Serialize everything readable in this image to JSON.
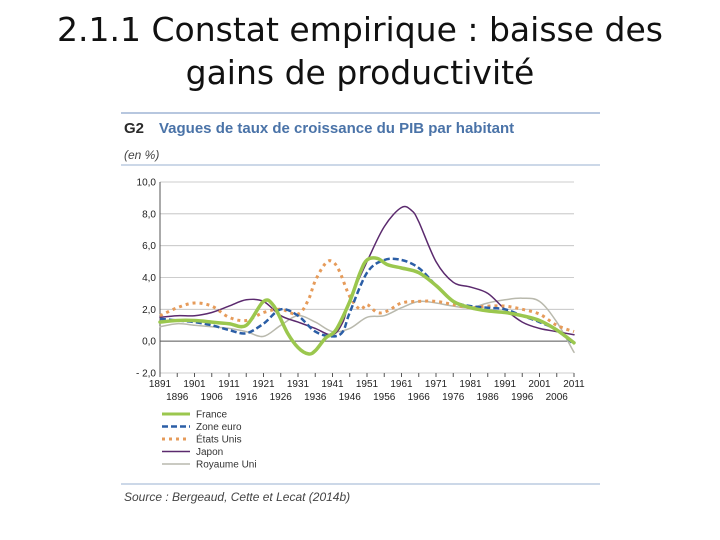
{
  "slide": {
    "title_line1": "2.1.1 Constat empirique : baisse des",
    "title_line2": "gains de productivité"
  },
  "figure": {
    "code": "G2",
    "title": "Vagues de taux de croissance du PIB par habitant",
    "unit": "(en %)",
    "source": "Source : Bergeaud, Cette et Lecat (2014b)"
  },
  "chart_data": {
    "type": "line",
    "ylim": [
      -2,
      10
    ],
    "yticks": [
      "10,0",
      "8,0",
      "6,0",
      "4,0",
      "2,0",
      "0,0",
      "- 2,0"
    ],
    "xlim": [
      1891,
      2011
    ],
    "xticks_top": [
      "1891",
      "1901",
      "1911",
      "1921",
      "1931",
      "1941",
      "1951",
      "1961",
      "1971",
      "1981",
      "1991",
      "2001",
      "2011"
    ],
    "xticks_bottom": [
      "1896",
      "1906",
      "1916",
      "1926",
      "1936",
      "1946",
      "1956",
      "1966",
      "1976",
      "1986",
      "1996",
      "2006"
    ],
    "grid": "horizontal",
    "legend_position": "bottom-left",
    "series": [
      {
        "name": "France",
        "color": "#9bc74e",
        "style": "solid",
        "points": [
          [
            1891,
            1.2
          ],
          [
            1896,
            1.3
          ],
          [
            1901,
            1.3
          ],
          [
            1906,
            1.2
          ],
          [
            1911,
            1.1
          ],
          [
            1916,
            1.0
          ],
          [
            1921,
            2.5
          ],
          [
            1924,
            2.2
          ],
          [
            1928,
            0.5
          ],
          [
            1931,
            -0.4
          ],
          [
            1934,
            -0.8
          ],
          [
            1936,
            -0.6
          ],
          [
            1939,
            0.2
          ],
          [
            1942,
            0.7
          ],
          [
            1946,
            2.5
          ],
          [
            1949,
            4.3
          ],
          [
            1951,
            5.1
          ],
          [
            1954,
            5.2
          ],
          [
            1957,
            4.8
          ],
          [
            1961,
            4.6
          ],
          [
            1966,
            4.3
          ],
          [
            1971,
            3.5
          ],
          [
            1976,
            2.5
          ],
          [
            1981,
            2.1
          ],
          [
            1986,
            1.9
          ],
          [
            1991,
            1.8
          ],
          [
            1996,
            1.6
          ],
          [
            2001,
            1.3
          ],
          [
            2006,
            0.7
          ],
          [
            2011,
            -0.1
          ]
        ]
      },
      {
        "name": "Zone euro",
        "color": "#2b5ea6",
        "style": "dashed",
        "points": [
          [
            1891,
            1.4
          ],
          [
            1896,
            1.3
          ],
          [
            1901,
            1.2
          ],
          [
            1906,
            1.0
          ],
          [
            1911,
            0.7
          ],
          [
            1916,
            0.5
          ],
          [
            1921,
            1.1
          ],
          [
            1926,
            2.0
          ],
          [
            1931,
            1.6
          ],
          [
            1936,
            0.6
          ],
          [
            1941,
            0.3
          ],
          [
            1944,
            0.6
          ],
          [
            1946,
            1.8
          ],
          [
            1951,
            4.3
          ],
          [
            1956,
            5.1
          ],
          [
            1961,
            5.1
          ],
          [
            1966,
            4.6
          ],
          [
            1971,
            3.5
          ],
          [
            1976,
            2.5
          ],
          [
            1981,
            2.2
          ],
          [
            1986,
            2.1
          ],
          [
            1991,
            2.0
          ],
          [
            1996,
            1.6
          ],
          [
            2001,
            1.2
          ],
          [
            2006,
            0.7
          ],
          [
            2011,
            -0.2
          ]
        ]
      },
      {
        "name": "États Unis",
        "color": "#e69b5a",
        "style": "dotted",
        "points": [
          [
            1891,
            1.6
          ],
          [
            1896,
            2.1
          ],
          [
            1901,
            2.4
          ],
          [
            1906,
            2.2
          ],
          [
            1911,
            1.5
          ],
          [
            1916,
            1.3
          ],
          [
            1921,
            1.8
          ],
          [
            1926,
            2.0
          ],
          [
            1931,
            1.7
          ],
          [
            1934,
            2.6
          ],
          [
            1936,
            3.8
          ],
          [
            1939,
            4.9
          ],
          [
            1941,
            5.0
          ],
          [
            1943,
            4.4
          ],
          [
            1946,
            2.8
          ],
          [
            1949,
            2.0
          ],
          [
            1951,
            2.3
          ],
          [
            1954,
            1.8
          ],
          [
            1957,
            1.9
          ],
          [
            1961,
            2.4
          ],
          [
            1966,
            2.5
          ],
          [
            1971,
            2.5
          ],
          [
            1976,
            2.3
          ],
          [
            1981,
            2.1
          ],
          [
            1986,
            2.2
          ],
          [
            1991,
            2.2
          ],
          [
            1996,
            2.0
          ],
          [
            2001,
            1.7
          ],
          [
            2006,
            1.0
          ],
          [
            2011,
            0.6
          ]
        ]
      },
      {
        "name": "Japon",
        "color": "#5b2a6e",
        "style": "solid",
        "points": [
          [
            1891,
            1.5
          ],
          [
            1896,
            1.6
          ],
          [
            1901,
            1.6
          ],
          [
            1906,
            1.8
          ],
          [
            1911,
            2.2
          ],
          [
            1916,
            2.6
          ],
          [
            1921,
            2.5
          ],
          [
            1926,
            1.6
          ],
          [
            1931,
            1.2
          ],
          [
            1936,
            0.8
          ],
          [
            1941,
            0.4
          ],
          [
            1944,
            1.2
          ],
          [
            1946,
            2.6
          ],
          [
            1951,
            5.0
          ],
          [
            1956,
            7.2
          ],
          [
            1961,
            8.4
          ],
          [
            1964,
            8.2
          ],
          [
            1966,
            7.5
          ],
          [
            1971,
            5.0
          ],
          [
            1976,
            3.7
          ],
          [
            1981,
            3.4
          ],
          [
            1986,
            3.0
          ],
          [
            1991,
            2.0
          ],
          [
            1996,
            1.2
          ],
          [
            2001,
            0.8
          ],
          [
            2006,
            0.6
          ],
          [
            2011,
            0.4
          ]
        ]
      },
      {
        "name": "Royaume Uni",
        "color": "#b9b9ad",
        "style": "solid",
        "points": [
          [
            1891,
            0.9
          ],
          [
            1896,
            1.1
          ],
          [
            1901,
            1.0
          ],
          [
            1906,
            0.9
          ],
          [
            1911,
            0.8
          ],
          [
            1916,
            0.6
          ],
          [
            1921,
            0.3
          ],
          [
            1926,
            1.0
          ],
          [
            1931,
            1.6
          ],
          [
            1936,
            1.2
          ],
          [
            1941,
            0.6
          ],
          [
            1946,
            0.8
          ],
          [
            1951,
            1.5
          ],
          [
            1956,
            1.6
          ],
          [
            1961,
            2.1
          ],
          [
            1966,
            2.5
          ],
          [
            1971,
            2.4
          ],
          [
            1976,
            2.2
          ],
          [
            1981,
            2.1
          ],
          [
            1986,
            2.4
          ],
          [
            1991,
            2.6
          ],
          [
            1996,
            2.7
          ],
          [
            2001,
            2.5
          ],
          [
            2006,
            1.2
          ],
          [
            2011,
            -0.7
          ]
        ]
      }
    ]
  }
}
